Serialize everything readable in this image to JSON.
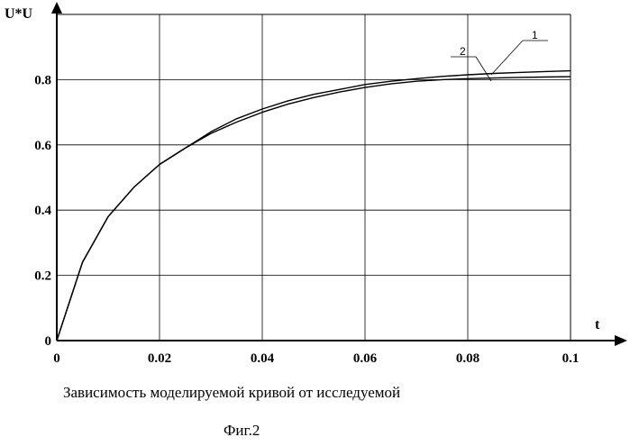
{
  "chart_data": {
    "type": "line",
    "xlabel": "t",
    "ylabel": "U*U",
    "xlim": [
      0,
      0.1
    ],
    "ylim": [
      0,
      1
    ],
    "x_ticks": [
      "0",
      "0.02",
      "0.04",
      "0.06",
      "0.08",
      "0.1"
    ],
    "y_ticks": [
      "0",
      "0.2",
      "0.4",
      "0.6",
      "0.8"
    ],
    "grid": true,
    "series": [
      {
        "name": "1",
        "x": [
          0,
          0.005,
          0.01,
          0.015,
          0.02,
          0.025,
          0.03,
          0.035,
          0.04,
          0.045,
          0.05,
          0.055,
          0.06,
          0.065,
          0.07,
          0.075,
          0.08,
          0.085,
          0.09,
          0.095,
          0.1
        ],
        "values": [
          0,
          0.24,
          0.38,
          0.47,
          0.54,
          0.59,
          0.64,
          0.68,
          0.71,
          0.735,
          0.755,
          0.77,
          0.785,
          0.795,
          0.803,
          0.81,
          0.815,
          0.819,
          0.822,
          0.825,
          0.827
        ]
      },
      {
        "name": "2",
        "x": [
          0,
          0.005,
          0.01,
          0.015,
          0.02,
          0.025,
          0.03,
          0.035,
          0.04,
          0.045,
          0.05,
          0.055,
          0.06,
          0.065,
          0.07,
          0.075,
          0.08,
          0.085,
          0.09,
          0.095,
          0.1
        ],
        "values": [
          0,
          0.24,
          0.38,
          0.47,
          0.54,
          0.59,
          0.635,
          0.67,
          0.7,
          0.725,
          0.745,
          0.762,
          0.776,
          0.787,
          0.795,
          0.8,
          0.803,
          0.805,
          0.807,
          0.808,
          0.809
        ]
      }
    ]
  },
  "caption": "Зависимость моделируемой кривой от исследуемой",
  "figure_label": "Фиг.2",
  "colors": {
    "line": "#000000",
    "grid": "#000000",
    "background": "#ffffff"
  }
}
